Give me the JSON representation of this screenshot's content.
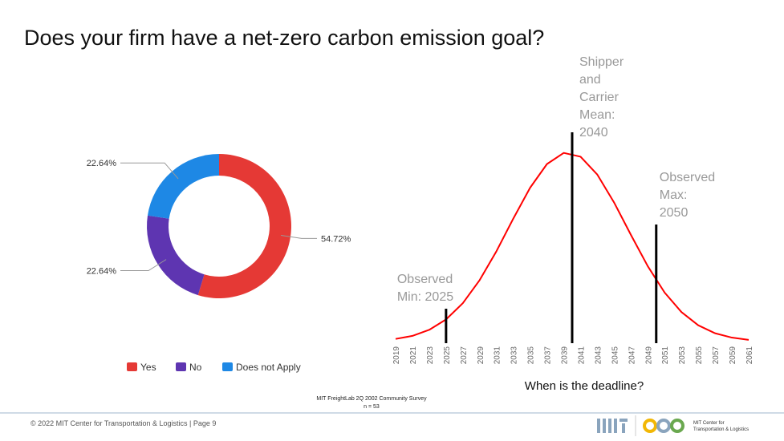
{
  "title": "Does your firm have a net-zero carbon emission goal?",
  "chart_data": [
    {
      "type": "donut",
      "categories": [
        "Yes",
        "No",
        "Does not Apply"
      ],
      "values": [
        54.72,
        22.64,
        22.64
      ],
      "value_labels": [
        "54.72%",
        "22.64%",
        "22.64%"
      ],
      "colors": [
        "#e53935",
        "#5e35b1",
        "#1e88e5"
      ],
      "legend": "bottom"
    },
    {
      "type": "line",
      "x_label": "When is the deadline?",
      "x": [
        2019,
        2021,
        2023,
        2025,
        2027,
        2029,
        2031,
        2033,
        2035,
        2037,
        2039,
        2041,
        2043,
        2045,
        2047,
        2049,
        2051,
        2053,
        2055,
        2057,
        2059,
        2061
      ],
      "values": [
        1.4,
        3.0,
        6.2,
        11.7,
        20.3,
        32.5,
        47.8,
        65.0,
        81.3,
        93.8,
        99.7,
        97.7,
        88.2,
        73.4,
        56.3,
        39.8,
        25.9,
        15.6,
        8.6,
        4.4,
        2.1,
        0.9
      ],
      "color": "#ff0000",
      "xlim": [
        2019,
        2061
      ],
      "ylim": [
        0,
        100
      ],
      "xticks": [
        2019,
        2021,
        2023,
        2025,
        2027,
        2029,
        2031,
        2033,
        2035,
        2037,
        2039,
        2041,
        2043,
        2045,
        2047,
        2049,
        2051,
        2053,
        2055,
        2057,
        2059,
        2061
      ],
      "annotations": [
        {
          "lines": [
            "Observed",
            "Min: 2025"
          ],
          "x": 2025
        },
        {
          "lines": [
            "Shipper",
            "and",
            "Carrier",
            "Mean:",
            "2040"
          ],
          "x": 2040
        },
        {
          "lines": [
            "Observed",
            "Max:",
            "2050"
          ],
          "x": 2050
        }
      ]
    }
  ],
  "source": [
    "MIT FreightLab 2Q 2002 Community Survey",
    "n = 53"
  ],
  "footer": "© 2022 MIT Center for Transportation & Logistics  | Page 9",
  "logo_text": [
    "MIT Center for",
    "Transportation & Logistics"
  ]
}
